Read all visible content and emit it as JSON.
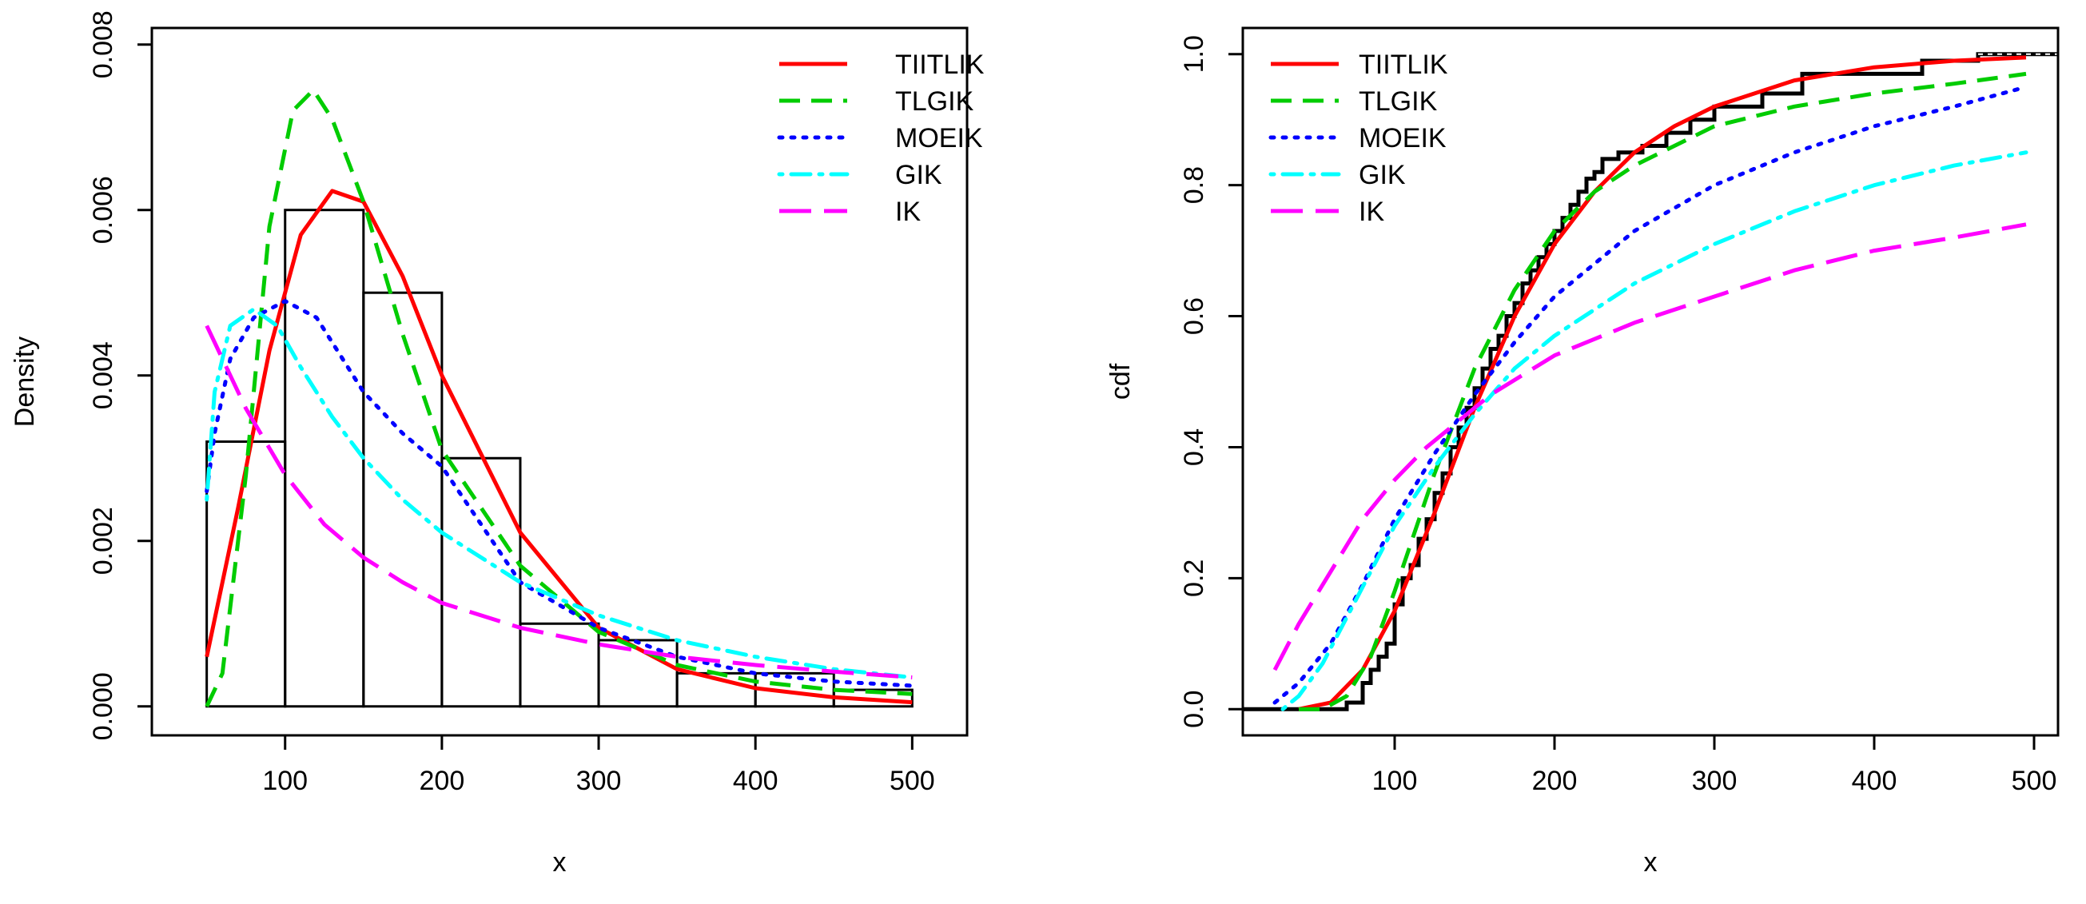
{
  "colors": {
    "TIITLIK": "#ff0000",
    "TLGIK": "#00cc00",
    "MOEIK": "#0000ff",
    "GIK": "#00ffff",
    "IK": "#ff00ff",
    "histogram": "#000000",
    "ecdf": "#000000"
  },
  "legend_labels": [
    "TIITLIK",
    "TLGIK",
    "MOEIK",
    "GIK",
    "IK"
  ],
  "chart_data": [
    {
      "id": "density",
      "type": "bar",
      "xlabel": "x",
      "ylabel": "Density",
      "xlim": [
        15,
        535
      ],
      "ylim": [
        -0.00035,
        0.0082
      ],
      "xticks": [
        100,
        200,
        300,
        400,
        500
      ],
      "xtick_labels": [
        "100",
        "200",
        "300",
        "400",
        "500"
      ],
      "yticks": [
        0,
        0.002,
        0.004,
        0.006,
        0.008
      ],
      "ytick_labels": [
        "0.000",
        "0.002",
        "0.004",
        "0.006",
        "0.008"
      ],
      "legend_position": "top-right",
      "histogram": {
        "bins": [
          [
            50,
            100
          ],
          [
            100,
            150
          ],
          [
            150,
            200
          ],
          [
            200,
            250
          ],
          [
            250,
            300
          ],
          [
            300,
            350
          ],
          [
            350,
            400
          ],
          [
            400,
            450
          ],
          [
            450,
            500
          ]
        ],
        "values": [
          0.0032,
          0.006,
          0.005,
          0.003,
          0.001,
          0.0008,
          0.0004,
          0.0004,
          0.0002
        ]
      },
      "series": [
        {
          "name": "TIITLIK",
          "dash": "solid",
          "x": [
            50,
            70,
            90,
            110,
            130,
            150,
            175,
            200,
            250,
            300,
            350,
            400,
            450,
            500
          ],
          "values": [
            0.0006,
            0.0024,
            0.0043,
            0.0057,
            0.00623,
            0.0061,
            0.0052,
            0.004,
            0.0021,
            0.00095,
            0.00045,
            0.00022,
            0.00011,
            5e-05
          ]
        },
        {
          "name": "TLGIK",
          "dash": "dashed",
          "x": [
            50,
            60,
            75,
            90,
            105,
            118,
            130,
            150,
            175,
            200,
            250,
            300,
            350,
            400,
            450,
            500
          ],
          "values": [
            0.0,
            0.0004,
            0.0028,
            0.0058,
            0.0072,
            0.00745,
            0.0071,
            0.0061,
            0.0045,
            0.0031,
            0.0017,
            0.0009,
            0.0005,
            0.0003,
            0.0002,
            0.00015
          ]
        },
        {
          "name": "MOEIK",
          "dash": "dotted",
          "x": [
            50,
            55,
            65,
            80,
            100,
            120,
            150,
            175,
            200,
            250,
            300,
            350,
            400,
            450,
            500
          ],
          "values": [
            0.0026,
            0.0033,
            0.0042,
            0.0047,
            0.0049,
            0.0047,
            0.0038,
            0.0033,
            0.0029,
            0.0015,
            0.00095,
            0.0006,
            0.0004,
            0.0003,
            0.00025
          ]
        },
        {
          "name": "GIK",
          "dash": "dotdash",
          "x": [
            50,
            55,
            65,
            80,
            95,
            110,
            130,
            150,
            175,
            200,
            250,
            300,
            350,
            400,
            450,
            500
          ],
          "values": [
            0.0025,
            0.0038,
            0.0046,
            0.0048,
            0.0046,
            0.0041,
            0.0035,
            0.003,
            0.0025,
            0.0021,
            0.0015,
            0.0011,
            0.0008,
            0.0006,
            0.00045,
            0.00035
          ]
        },
        {
          "name": "IK",
          "dash": "longdash",
          "x": [
            50,
            75,
            100,
            125,
            150,
            175,
            200,
            250,
            300,
            350,
            400,
            450,
            500
          ],
          "values": [
            0.0046,
            0.0036,
            0.0028,
            0.0022,
            0.0018,
            0.0015,
            0.00125,
            0.00095,
            0.00075,
            0.0006,
            0.0005,
            0.00042,
            0.00035
          ]
        }
      ]
    },
    {
      "id": "cdf",
      "type": "line",
      "xlabel": "x",
      "ylabel": "cdf",
      "xlim": [
        5,
        515
      ],
      "ylim": [
        -0.04,
        1.04
      ],
      "xticks": [
        100,
        200,
        300,
        400,
        500
      ],
      "xtick_labels": [
        "100",
        "200",
        "300",
        "400",
        "500"
      ],
      "yticks": [
        0,
        0.2,
        0.4,
        0.6,
        0.8,
        1.0
      ],
      "ytick_labels": [
        "0.0",
        "0.2",
        "0.4",
        "0.6",
        "0.8",
        "1.0"
      ],
      "legend_position": "top-left",
      "ecdf": {
        "x": [
          5,
          65,
          70,
          80,
          85,
          90,
          95,
          100,
          105,
          110,
          115,
          120,
          125,
          130,
          135,
          140,
          145,
          150,
          155,
          160,
          165,
          170,
          175,
          180,
          185,
          190,
          195,
          200,
          205,
          210,
          215,
          220,
          225,
          230,
          240,
          255,
          270,
          285,
          300,
          330,
          355,
          390,
          430,
          465,
          515
        ],
        "values": [
          0.0,
          0.0,
          0.01,
          0.04,
          0.06,
          0.08,
          0.1,
          0.16,
          0.2,
          0.22,
          0.26,
          0.29,
          0.33,
          0.36,
          0.4,
          0.43,
          0.46,
          0.49,
          0.52,
          0.55,
          0.57,
          0.6,
          0.62,
          0.65,
          0.67,
          0.69,
          0.71,
          0.73,
          0.75,
          0.77,
          0.79,
          0.81,
          0.82,
          0.84,
          0.85,
          0.86,
          0.88,
          0.9,
          0.92,
          0.94,
          0.97,
          0.97,
          0.99,
          1.0,
          1.0
        ]
      },
      "series": [
        {
          "name": "TIITLIK",
          "dash": "solid",
          "x": [
            40,
            60,
            80,
            100,
            125,
            150,
            175,
            200,
            225,
            250,
            275,
            300,
            350,
            400,
            450,
            495
          ],
          "values": [
            0.0,
            0.01,
            0.06,
            0.15,
            0.3,
            0.46,
            0.6,
            0.71,
            0.79,
            0.85,
            0.89,
            0.92,
            0.96,
            0.98,
            0.99,
            0.995
          ]
        },
        {
          "name": "TLGIK",
          "dash": "dashed",
          "x": [
            40,
            55,
            70,
            85,
            100,
            125,
            150,
            175,
            200,
            225,
            250,
            300,
            350,
            400,
            450,
            495
          ],
          "values": [
            0.0,
            0.0,
            0.02,
            0.08,
            0.18,
            0.36,
            0.52,
            0.64,
            0.73,
            0.79,
            0.83,
            0.89,
            0.92,
            0.94,
            0.955,
            0.97
          ]
        },
        {
          "name": "MOEIK",
          "dash": "dotted",
          "x": [
            25,
            40,
            60,
            80,
            100,
            125,
            150,
            175,
            200,
            250,
            300,
            350,
            400,
            450,
            495
          ],
          "values": [
            0.01,
            0.04,
            0.1,
            0.19,
            0.29,
            0.39,
            0.48,
            0.56,
            0.63,
            0.73,
            0.8,
            0.85,
            0.89,
            0.92,
            0.95
          ]
        },
        {
          "name": "GIK",
          "dash": "dotdash",
          "x": [
            30,
            40,
            55,
            70,
            85,
            100,
            125,
            150,
            175,
            200,
            250,
            300,
            350,
            400,
            450,
            495
          ],
          "values": [
            0.0,
            0.02,
            0.07,
            0.14,
            0.21,
            0.28,
            0.37,
            0.45,
            0.52,
            0.57,
            0.65,
            0.71,
            0.76,
            0.8,
            0.83,
            0.85
          ]
        },
        {
          "name": "IK",
          "dash": "longdash",
          "x": [
            25,
            40,
            60,
            80,
            100,
            120,
            140,
            160,
            180,
            200,
            250,
            300,
            350,
            400,
            450,
            495
          ],
          "values": [
            0.06,
            0.13,
            0.21,
            0.29,
            0.35,
            0.4,
            0.44,
            0.48,
            0.51,
            0.54,
            0.59,
            0.63,
            0.67,
            0.7,
            0.72,
            0.74
          ]
        }
      ]
    }
  ]
}
